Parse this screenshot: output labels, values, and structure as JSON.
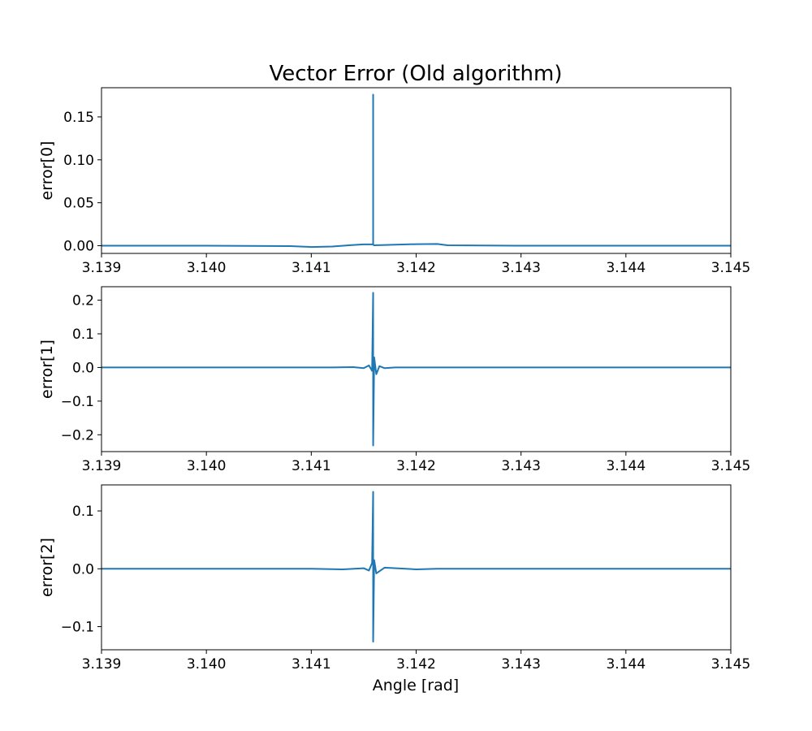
{
  "figure": {
    "title": "Vector Error (Old algorithm)",
    "xlabel": "Angle [rad]"
  },
  "chart_data": [
    {
      "type": "line",
      "ylabel": "error[0]",
      "xlim": [
        3.139,
        3.145
      ],
      "ylim": [
        -0.009,
        0.184
      ],
      "xticks": [
        3.139,
        3.14,
        3.141,
        3.142,
        3.143,
        3.144,
        3.145
      ],
      "xtick_labels": [
        "3.139",
        "3.140",
        "3.141",
        "3.142",
        "3.143",
        "3.144",
        "3.145"
      ],
      "yticks": [
        0.0,
        0.05,
        0.1,
        0.15
      ],
      "ytick_labels": [
        "0.00",
        "0.05",
        "0.10",
        "0.15"
      ],
      "grid": false,
      "color": "#1f77b4",
      "x": [
        3.139,
        3.14,
        3.1408,
        3.141,
        3.1412,
        3.1414,
        3.1415,
        3.14159,
        3.14159,
        3.14159,
        3.1416,
        3.1418,
        3.142,
        3.1422,
        3.1423,
        3.143,
        3.144,
        3.145
      ],
      "y": [
        0.0,
        0.0,
        -0.0005,
        -0.0015,
        -0.001,
        0.0008,
        0.0015,
        0.0015,
        0.176,
        0.0012,
        0.0005,
        0.0012,
        0.0018,
        0.002,
        0.0005,
        0.0,
        0.0,
        0.0
      ]
    },
    {
      "type": "line",
      "ylabel": "error[1]",
      "xlim": [
        3.139,
        3.145
      ],
      "ylim": [
        -0.25,
        0.24
      ],
      "xticks": [
        3.139,
        3.14,
        3.141,
        3.142,
        3.143,
        3.144,
        3.145
      ],
      "xtick_labels": [
        "3.139",
        "3.140",
        "3.141",
        "3.142",
        "3.143",
        "3.144",
        "3.145"
      ],
      "yticks": [
        -0.2,
        -0.1,
        0.0,
        0.1,
        0.2
      ],
      "ytick_labels": [
        "−0.2",
        "−0.1",
        "0.0",
        "0.1",
        "0.2"
      ],
      "grid": false,
      "color": "#1f77b4",
      "x": [
        3.139,
        3.1412,
        3.1414,
        3.1415,
        3.14155,
        3.14158,
        3.14159,
        3.14159,
        3.1416,
        3.14162,
        3.14165,
        3.1417,
        3.1418,
        3.145
      ],
      "y": [
        0.0,
        0.0,
        0.001,
        -0.002,
        0.006,
        -0.01,
        0.222,
        -0.232,
        0.03,
        -0.02,
        0.004,
        -0.002,
        0.0,
        0.0
      ]
    },
    {
      "type": "line",
      "ylabel": "error[2]",
      "xlim": [
        3.139,
        3.145
      ],
      "ylim": [
        -0.14,
        0.145
      ],
      "xticks": [
        3.139,
        3.14,
        3.141,
        3.142,
        3.143,
        3.144,
        3.145
      ],
      "xtick_labels": [
        "3.139",
        "3.140",
        "3.141",
        "3.142",
        "3.143",
        "3.144",
        "3.145"
      ],
      "yticks": [
        -0.1,
        0.0,
        0.1
      ],
      "ytick_labels": [
        "−0.1",
        "0.0",
        "0.1"
      ],
      "grid": false,
      "color": "#1f77b4",
      "x": [
        3.139,
        3.141,
        3.1413,
        3.1415,
        3.14155,
        3.14158,
        3.14159,
        3.14159,
        3.1416,
        3.14162,
        3.1417,
        3.142,
        3.1422,
        3.145
      ],
      "y": [
        0.0,
        0.0,
        -0.001,
        0.001,
        -0.003,
        0.01,
        0.133,
        -0.126,
        0.015,
        -0.008,
        0.002,
        -0.001,
        0.0,
        0.0
      ]
    }
  ]
}
